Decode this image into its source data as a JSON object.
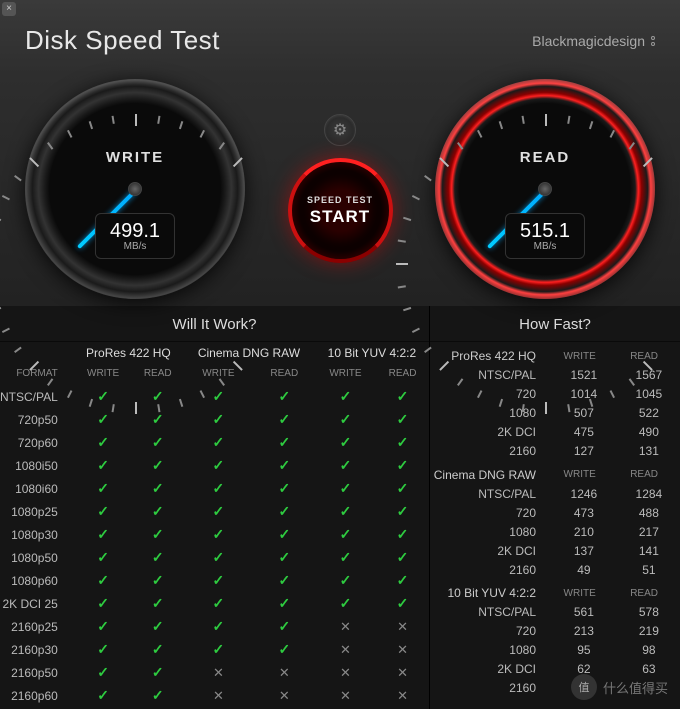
{
  "title": "Disk Speed Test",
  "brand": "Blackmagicdesign",
  "gauges": {
    "write": {
      "label": "WRITE",
      "value": "499.1",
      "unit": "MB/s",
      "needle_angle": 135
    },
    "read": {
      "label": "READ",
      "value": "515.1",
      "unit": "MB/s",
      "needle_angle": 135
    }
  },
  "start_button": {
    "label": "SPEED TEST",
    "text": "START"
  },
  "will_it_work": {
    "title": "Will It Work?",
    "groups": [
      "ProRes 422 HQ",
      "Cinema DNG RAW",
      "10 Bit YUV 4:2:2"
    ],
    "sub_cols": [
      "WRITE",
      "READ"
    ],
    "format_label": "FORMAT",
    "rows": [
      {
        "fmt": "NTSC/PAL",
        "v": [
          1,
          1,
          1,
          1,
          1,
          1
        ]
      },
      {
        "fmt": "720p50",
        "v": [
          1,
          1,
          1,
          1,
          1,
          1
        ]
      },
      {
        "fmt": "720p60",
        "v": [
          1,
          1,
          1,
          1,
          1,
          1
        ]
      },
      {
        "fmt": "1080i50",
        "v": [
          1,
          1,
          1,
          1,
          1,
          1
        ]
      },
      {
        "fmt": "1080i60",
        "v": [
          1,
          1,
          1,
          1,
          1,
          1
        ]
      },
      {
        "fmt": "1080p25",
        "v": [
          1,
          1,
          1,
          1,
          1,
          1
        ]
      },
      {
        "fmt": "1080p30",
        "v": [
          1,
          1,
          1,
          1,
          1,
          1
        ]
      },
      {
        "fmt": "1080p50",
        "v": [
          1,
          1,
          1,
          1,
          1,
          1
        ]
      },
      {
        "fmt": "1080p60",
        "v": [
          1,
          1,
          1,
          1,
          1,
          1
        ]
      },
      {
        "fmt": "2K DCI 25",
        "v": [
          1,
          1,
          1,
          1,
          1,
          1
        ]
      },
      {
        "fmt": "2160p25",
        "v": [
          1,
          1,
          1,
          1,
          0,
          0
        ]
      },
      {
        "fmt": "2160p30",
        "v": [
          1,
          1,
          1,
          1,
          0,
          0
        ]
      },
      {
        "fmt": "2160p50",
        "v": [
          1,
          1,
          0,
          0,
          0,
          0
        ]
      },
      {
        "fmt": "2160p60",
        "v": [
          1,
          1,
          0,
          0,
          0,
          0
        ]
      }
    ]
  },
  "how_fast": {
    "title": "How Fast?",
    "sub_cols": [
      "WRITE",
      "READ"
    ],
    "groups": [
      {
        "name": "ProRes 422 HQ",
        "rows": [
          {
            "fmt": "NTSC/PAL",
            "w": "1521",
            "r": "1567"
          },
          {
            "fmt": "720",
            "w": "1014",
            "r": "1045"
          },
          {
            "fmt": "1080",
            "w": "507",
            "r": "522"
          },
          {
            "fmt": "2K DCI",
            "w": "475",
            "r": "490"
          },
          {
            "fmt": "2160",
            "w": "127",
            "r": "131"
          }
        ]
      },
      {
        "name": "Cinema DNG RAW",
        "rows": [
          {
            "fmt": "NTSC/PAL",
            "w": "1246",
            "r": "1284"
          },
          {
            "fmt": "720",
            "w": "473",
            "r": "488"
          },
          {
            "fmt": "1080",
            "w": "210",
            "r": "217"
          },
          {
            "fmt": "2K DCI",
            "w": "137",
            "r": "141"
          },
          {
            "fmt": "2160",
            "w": "49",
            "r": "51"
          }
        ]
      },
      {
        "name": "10 Bit YUV 4:2:2",
        "rows": [
          {
            "fmt": "NTSC/PAL",
            "w": "561",
            "r": "578"
          },
          {
            "fmt": "720",
            "w": "213",
            "r": "219"
          },
          {
            "fmt": "1080",
            "w": "95",
            "r": "98"
          },
          {
            "fmt": "2K DCI",
            "w": "62",
            "r": "63"
          },
          {
            "fmt": "2160",
            "w": "",
            "r": ""
          }
        ]
      }
    ]
  },
  "watermark": "什么值得买",
  "colors": {
    "check": "#2ecc40",
    "cross": "#888",
    "accent_red": "#ff2020",
    "needle": "#0af"
  }
}
